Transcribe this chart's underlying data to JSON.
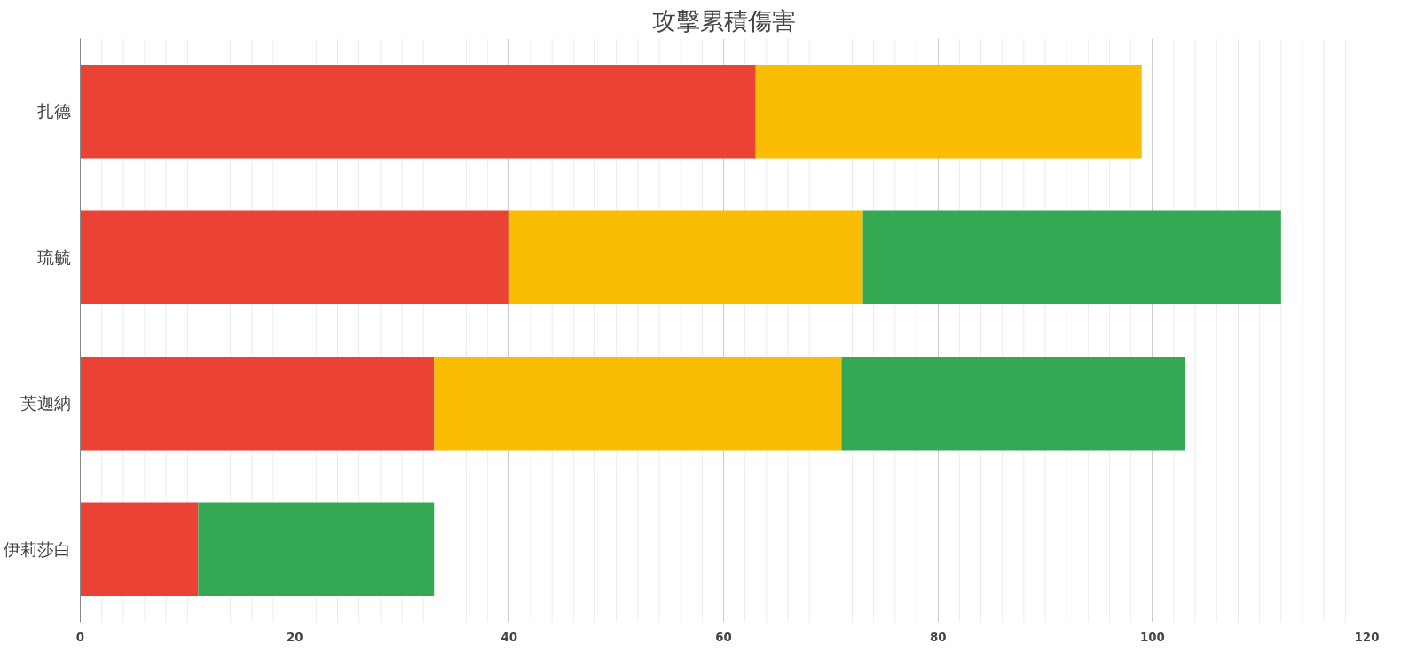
{
  "chart_data": {
    "type": "bar",
    "title": "攻擊累積傷害",
    "orientation": "horizontal",
    "stacked": true,
    "categories": [
      "扎德",
      "琉毓",
      "芙迦納",
      "伊莉莎白"
    ],
    "series": [
      {
        "color": "#ea4335",
        "values": [
          63,
          40,
          33,
          11
        ]
      },
      {
        "color": "#fbbc04",
        "values": [
          36,
          33,
          38,
          null
        ]
      },
      {
        "color": "#34a853",
        "values": [
          null,
          39,
          32,
          22
        ]
      }
    ],
    "xlim": [
      0,
      120
    ],
    "xticks": [
      0,
      {
        "value": 2,
        "label": null
      },
      {
        "value": 4,
        "label": null
      },
      {
        "value": 6,
        "label": null
      },
      {
        "value": 8,
        "label": null
      },
      {
        "value": 10,
        "label": null
      },
      {
        "value": 12,
        "label": null
      },
      {
        "value": 14,
        "label": null
      },
      {
        "value": 16,
        "label": null
      },
      {
        "value": 18,
        "label": null
      },
      20,
      {
        "value": 22,
        "label": null
      },
      {
        "value": 24,
        "label": null
      },
      {
        "value": 26,
        "label": null
      },
      {
        "value": 28,
        "label": null
      },
      {
        "value": 30,
        "label": null
      },
      {
        "value": 32,
        "label": null
      },
      {
        "value": 34,
        "label": null
      },
      {
        "value": 36,
        "label": null
      },
      {
        "value": 38,
        "label": null
      },
      40,
      {
        "value": 42,
        "label": null
      },
      {
        "value": 44,
        "label": null
      },
      {
        "value": 46,
        "label": null
      },
      {
        "value": 48,
        "label": null
      },
      {
        "value": 50,
        "label": null
      },
      {
        "value": 52,
        "label": null
      },
      {
        "value": 54,
        "label": null
      },
      {
        "value": 56,
        "label": null
      },
      {
        "value": 58,
        "label": null
      },
      60,
      {
        "value": 62,
        "label": null
      },
      {
        "value": 64,
        "label": null
      },
      {
        "value": 66,
        "label": null
      },
      {
        "value": 68,
        "label": null
      },
      {
        "value": 70,
        "label": null
      },
      {
        "value": 72,
        "label": null
      },
      {
        "value": 74,
        "label": null
      },
      {
        "value": 76,
        "label": null
      },
      {
        "value": 78,
        "label": null
      },
      80,
      {
        "value": 82,
        "label": null
      },
      {
        "value": 84,
        "label": null
      },
      {
        "value": 86,
        "label": null
      },
      {
        "value": 88,
        "label": null
      },
      {
        "value": 90,
        "label": null
      },
      {
        "value": 92,
        "label": null
      },
      {
        "value": 94,
        "label": null
      },
      {
        "value": 96,
        "label": null
      },
      {
        "value": 98,
        "label": null
      },
      100,
      {
        "value": 102,
        "label": null
      },
      {
        "value": 104,
        "label": null
      },
      {
        "value": 106,
        "label": null
      },
      {
        "value": 108,
        "label": null
      },
      {
        "value": 110,
        "label": null
      },
      {
        "value": 112,
        "label": null
      },
      {
        "value": 114,
        "label": null
      },
      {
        "value": 116,
        "label": null
      },
      {
        "value": 118,
        "label": null
      },
      120
    ],
    "grid": "x"
  }
}
